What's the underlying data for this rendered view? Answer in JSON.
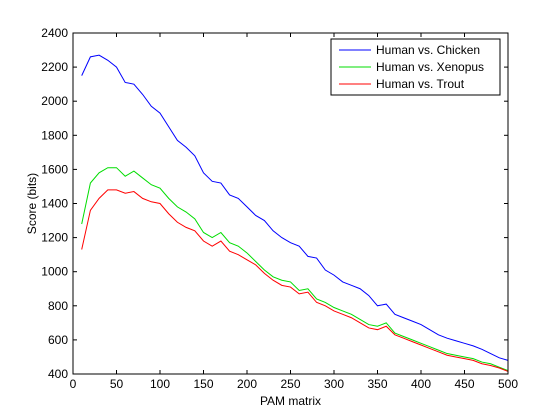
{
  "chart_data": {
    "type": "line",
    "title": "",
    "xlabel": "PAM matrix",
    "ylabel": "Score (bits)",
    "xlim": [
      0,
      500
    ],
    "ylim": [
      400,
      2400
    ],
    "xticks": [
      0,
      50,
      100,
      150,
      200,
      250,
      300,
      350,
      400,
      450,
      500
    ],
    "yticks": [
      400,
      600,
      800,
      1000,
      1200,
      1400,
      1600,
      1800,
      2000,
      2200,
      2400
    ],
    "grid": false,
    "legend_position": "top-right",
    "x": [
      10,
      20,
      30,
      40,
      50,
      60,
      70,
      80,
      90,
      100,
      110,
      120,
      130,
      140,
      150,
      160,
      170,
      180,
      190,
      200,
      210,
      220,
      230,
      240,
      250,
      260,
      270,
      280,
      290,
      300,
      310,
      320,
      330,
      340,
      350,
      360,
      370,
      380,
      390,
      400,
      410,
      420,
      430,
      440,
      450,
      460,
      470,
      480,
      490,
      500
    ],
    "series": [
      {
        "name": "Human vs. Chicken",
        "color": "#0000ff",
        "values": [
          2150,
          2260,
          2270,
          2240,
          2200,
          2110,
          2100,
          2040,
          1970,
          1930,
          1850,
          1770,
          1730,
          1680,
          1580,
          1530,
          1520,
          1450,
          1430,
          1380,
          1330,
          1300,
          1240,
          1200,
          1170,
          1150,
          1090,
          1080,
          1010,
          980,
          940,
          920,
          900,
          860,
          800,
          810,
          750,
          730,
          710,
          690,
          660,
          630,
          610,
          595,
          580,
          565,
          545,
          520,
          495,
          480
        ]
      },
      {
        "name": "Human vs. Xenopus",
        "color": "#00dd00",
        "values": [
          1280,
          1520,
          1580,
          1610,
          1610,
          1560,
          1590,
          1550,
          1510,
          1490,
          1430,
          1380,
          1350,
          1310,
          1230,
          1200,
          1230,
          1170,
          1150,
          1110,
          1060,
          1010,
          970,
          950,
          940,
          890,
          900,
          840,
          820,
          790,
          770,
          750,
          720,
          690,
          680,
          700,
          640,
          620,
          600,
          580,
          560,
          540,
          520,
          510,
          500,
          490,
          470,
          460,
          440,
          420
        ]
      },
      {
        "name": "Human vs. Trout",
        "color": "#ff0000",
        "values": [
          1130,
          1360,
          1430,
          1480,
          1480,
          1460,
          1470,
          1430,
          1410,
          1400,
          1340,
          1290,
          1260,
          1240,
          1180,
          1150,
          1180,
          1120,
          1100,
          1070,
          1040,
          990,
          950,
          920,
          910,
          870,
          880,
          820,
          800,
          770,
          750,
          730,
          700,
          670,
          660,
          680,
          630,
          610,
          590,
          570,
          550,
          530,
          510,
          500,
          490,
          480,
          460,
          450,
          435,
          415
        ]
      }
    ]
  }
}
